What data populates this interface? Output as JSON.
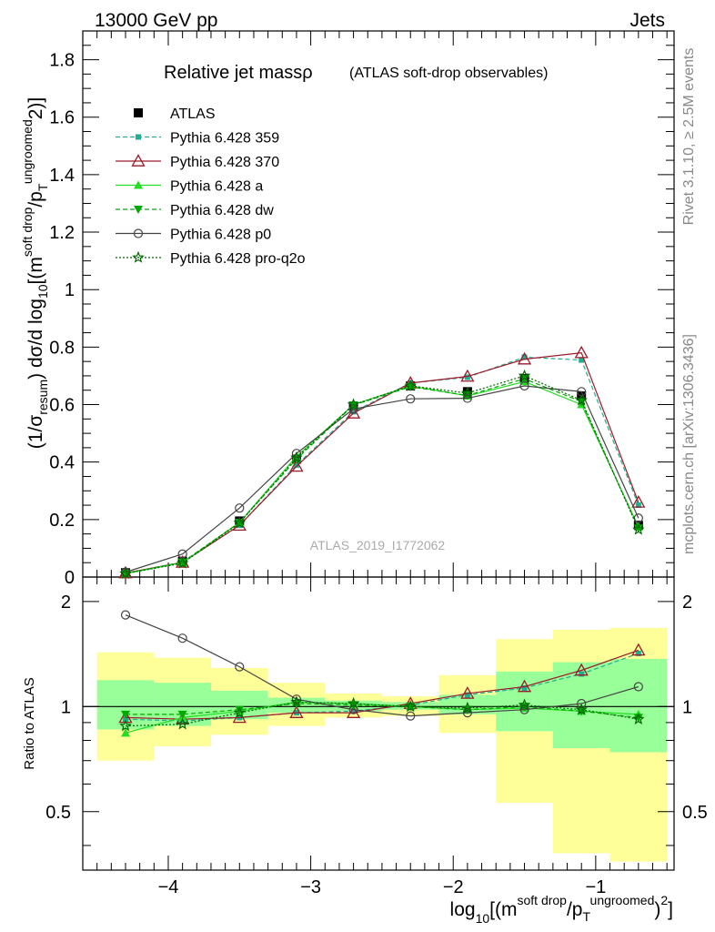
{
  "header": {
    "left": "13000 GeV pp",
    "right": "Jets"
  },
  "side": {
    "rivet": "Rivet 3.1.10, ≥ 2.5M events",
    "mcplots": "mcplots.cern.ch [arXiv:1306.3436]"
  },
  "title": {
    "main": "Relative jet massρ",
    "sub": "(ATLAS soft-drop observables)"
  },
  "watermark": "ATLAS_2019_I1772062",
  "axes": {
    "xlabel_log": "log",
    "xlabel_sub": "10",
    "xlabel_main": "[(m",
    "xlabel_sup1": "soft drop",
    "xlabel_mid": "/p",
    "xlabel_T": "T",
    "xlabel_sup2": "ungroomed",
    "xlabel_end": ")",
    "xlabel_pow": "2",
    "xlabel_close": "]",
    "ylabel_main": "(1/σ",
    "ylabel_resum": "resum",
    "ylabel_rest": ") dσ/d log",
    "ylabel_10": "10",
    "ylabel_m": "[(m",
    "ylabel_sup1": "soft drop",
    "ylabel_p": "/p",
    "ylabel_T": "T",
    "ylabel_sup2": "ungroomed",
    "ylabel_pow": "2",
    "ylabel_close": ")]",
    "ratio_label": "Ratio to ATLAS"
  },
  "chart_data": {
    "type": "line",
    "x_edges": [
      -4.5,
      -4.1,
      -3.7,
      -3.3,
      -2.9,
      -2.5,
      -2.1,
      -1.7,
      -1.3,
      -0.9,
      -0.5
    ],
    "x": [
      -4.3,
      -3.9,
      -3.5,
      -3.1,
      -2.7,
      -2.3,
      -1.9,
      -1.5,
      -1.1,
      -0.7
    ],
    "xlim": [
      -4.6,
      -0.45
    ],
    "xticks": [
      -4,
      -3,
      -2,
      -1
    ],
    "xticklabels": [
      "−4",
      "−3",
      "−2",
      "−1"
    ],
    "main": {
      "ylim": [
        0,
        1.9
      ],
      "yticks": [
        0,
        0.2,
        0.4,
        0.6,
        0.8,
        1,
        1.2,
        1.4,
        1.6,
        1.8
      ],
      "yticklabels": [
        "0",
        "0.2",
        "0.4",
        "0.6",
        "0.8",
        "1",
        "1.2",
        "1.4",
        "1.6",
        "1.8"
      ]
    },
    "ratio": {
      "ylim": [
        0.34,
        2.35
      ],
      "yticks": [
        0.5,
        1,
        2
      ],
      "yticklabels": [
        "0.5",
        "1",
        "2"
      ],
      "band_stat": [
        [
          0.86,
          1.19
        ],
        [
          0.88,
          1.17
        ],
        [
          0.92,
          1.11
        ],
        [
          0.96,
          1.06
        ],
        [
          0.97,
          1.04
        ],
        [
          0.98,
          1.03
        ],
        [
          0.95,
          1.08
        ],
        [
          0.85,
          1.26
        ],
        [
          0.76,
          1.34
        ],
        [
          0.74,
          1.37
        ]
      ],
      "band_total": [
        [
          0.7,
          1.43
        ],
        [
          0.77,
          1.38
        ],
        [
          0.83,
          1.29
        ],
        [
          0.88,
          1.17
        ],
        [
          0.93,
          1.09
        ],
        [
          0.94,
          1.07
        ],
        [
          0.84,
          1.23
        ],
        [
          0.53,
          1.56
        ],
        [
          0.38,
          1.66
        ],
        [
          0.36,
          1.68
        ]
      ]
    },
    "series": [
      {
        "name": "ATLAS",
        "color": "#000000",
        "marker": "square",
        "line": "none",
        "values": [
          0.015,
          0.055,
          0.195,
          0.41,
          0.595,
          0.665,
          0.645,
          0.69,
          0.63,
          0.18
        ],
        "ratio": [
          1,
          1,
          1,
          1,
          1,
          1,
          1,
          1,
          1,
          1
        ]
      },
      {
        "name": "Pythia 6.428 359",
        "color": "#1fae8f",
        "marker": "smallsquare",
        "line": "dashed",
        "values": [
          0.013,
          0.05,
          0.18,
          0.39,
          0.575,
          0.675,
          0.695,
          0.765,
          0.755,
          0.25
        ],
        "ratio": [
          0.92,
          0.91,
          0.93,
          0.96,
          0.97,
          1.01,
          1.08,
          1.13,
          1.24,
          1.42
        ]
      },
      {
        "name": "Pythia 6.428 370",
        "color": "#9b1b2a",
        "marker": "triangle-open",
        "line": "solid",
        "values": [
          0.014,
          0.051,
          0.18,
          0.385,
          0.57,
          0.675,
          0.698,
          0.758,
          0.78,
          0.26
        ],
        "ratio": [
          0.93,
          0.92,
          0.93,
          0.96,
          0.96,
          1.02,
          1.09,
          1.14,
          1.27,
          1.45
        ]
      },
      {
        "name": "Pythia 6.428 a",
        "color": "#22dd22",
        "marker": "triangle",
        "line": "solid",
        "values": [
          0.012,
          0.05,
          0.19,
          0.42,
          0.6,
          0.665,
          0.63,
          0.68,
          0.6,
          0.175
        ],
        "ratio": [
          0.84,
          0.93,
          0.97,
          1.03,
          1.02,
          1.0,
          0.98,
          0.99,
          0.97,
          0.95
        ]
      },
      {
        "name": "Pythia 6.428 dw",
        "color": "#00aa00",
        "marker": "triangle-down",
        "line": "dashed",
        "values": [
          0.013,
          0.052,
          0.19,
          0.41,
          0.598,
          0.662,
          0.632,
          0.69,
          0.61,
          0.17
        ],
        "ratio": [
          0.95,
          0.95,
          0.98,
          1.02,
          1.01,
          1.0,
          0.98,
          1.0,
          0.97,
          0.93
        ]
      },
      {
        "name": "Pythia 6.428 p0",
        "color": "#444444",
        "marker": "circle-open",
        "line": "solid",
        "values": [
          0.017,
          0.08,
          0.24,
          0.43,
          0.585,
          0.62,
          0.622,
          0.665,
          0.645,
          0.205
        ],
        "ratio": [
          1.83,
          1.57,
          1.3,
          1.05,
          0.98,
          0.94,
          0.96,
          0.98,
          1.02,
          1.14
        ]
      },
      {
        "name": "Pythia 6.428 pro-q2o",
        "color": "#006600",
        "marker": "star",
        "line": "dotted",
        "values": [
          0.012,
          0.048,
          0.188,
          0.415,
          0.6,
          0.665,
          0.64,
          0.7,
          0.615,
          0.165
        ],
        "ratio": [
          0.88,
          0.89,
          0.96,
          1.03,
          1.02,
          1.0,
          0.99,
          1.01,
          0.98,
          0.92
        ]
      }
    ]
  }
}
